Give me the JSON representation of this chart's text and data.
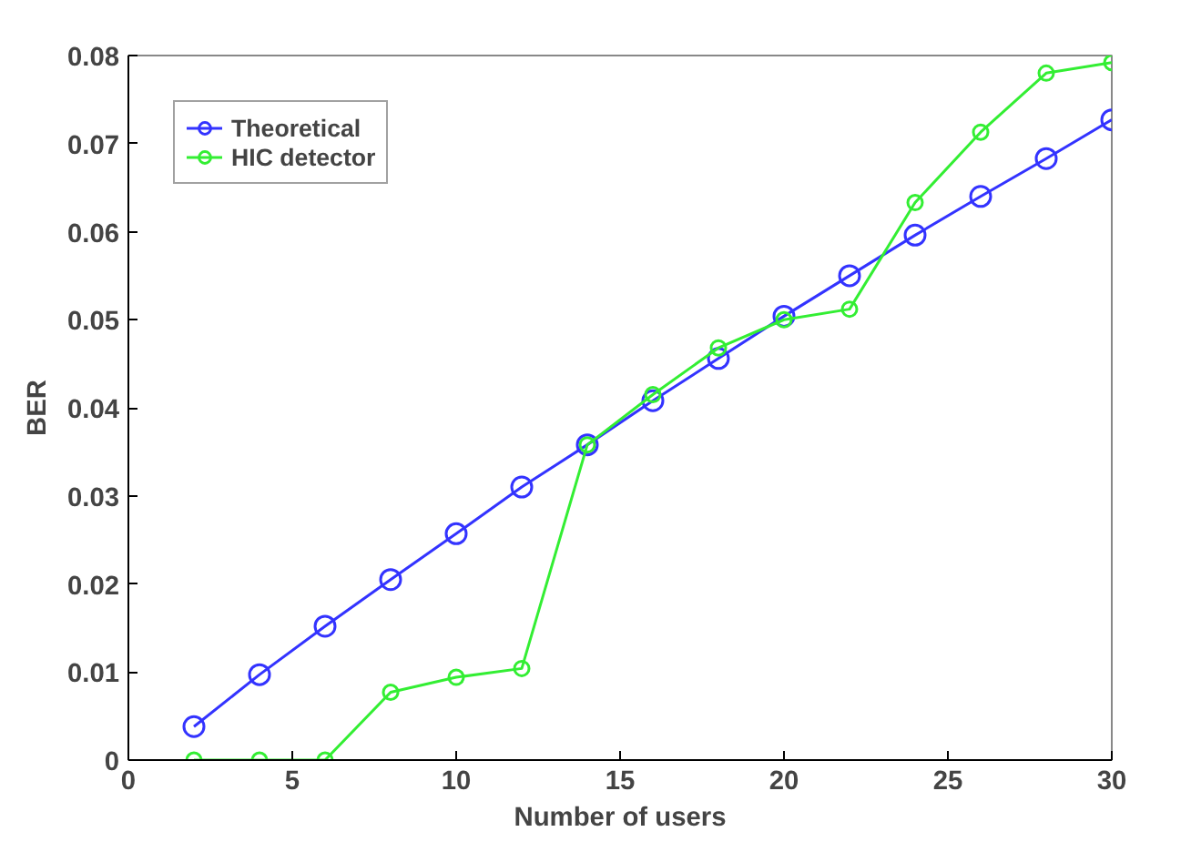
{
  "chart_data": {
    "type": "line",
    "xlabel": "Number of users",
    "ylabel": "BER",
    "x": [
      2,
      4,
      6,
      8,
      10,
      12,
      14,
      16,
      18,
      20,
      22,
      24,
      26,
      28,
      30
    ],
    "series": [
      {
        "name": "Theoretical",
        "color": "#3333ff",
        "values": [
          0.0038,
          0.0097,
          0.0152,
          0.0205,
          0.0257,
          0.031,
          0.0358,
          0.0408,
          0.0456,
          0.0504,
          0.055,
          0.0596,
          0.064,
          0.0683,
          0.0727
        ]
      },
      {
        "name": "HIC detector",
        "color": "#33ee33",
        "values": [
          0,
          0,
          0,
          0.0077,
          0.0094,
          0.0104,
          0.0358,
          0.0415,
          0.0468,
          0.05,
          0.0512,
          0.0633,
          0.0713,
          0.078,
          0.0792
        ]
      }
    ],
    "xlim": [
      0,
      30
    ],
    "xticks": [
      0,
      5,
      10,
      15,
      20,
      25,
      30
    ],
    "ylim": [
      0,
      0.08
    ],
    "yticks": [
      0,
      0.01,
      0.02,
      0.03,
      0.04,
      0.05,
      0.06,
      0.07,
      0.08
    ],
    "grid": false,
    "legend": "top left",
    "marker": "circle",
    "line_style": "solid"
  }
}
